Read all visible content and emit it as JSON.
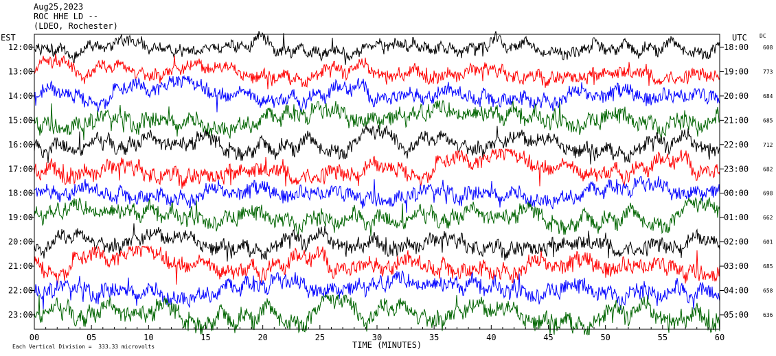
{
  "header": {
    "date": "Aug25,2023",
    "station": "ROC HHE LD --",
    "location": "(LDEO, Rochester)"
  },
  "footer": {
    "scale_note": "Each Vertical Division =  333.33 microvolts"
  },
  "chart_data": {
    "type": "line",
    "title": "",
    "xlabel": "TIME (MINUTES)",
    "left_axis_label": "EST",
    "right_axis_label": "UTC",
    "dc_label": "DC",
    "xlim": [
      0,
      60
    ],
    "x_ticks": [
      "00",
      "05",
      "10",
      "15",
      "20",
      "25",
      "30",
      "35",
      "40",
      "45",
      "50",
      "55",
      "60"
    ],
    "trace_colors": [
      "#000000",
      "#ff0000",
      "#0000ff",
      "#006400"
    ],
    "rows": [
      {
        "est": "12:00",
        "utc": "18:00",
        "dc": "608",
        "color": "#000000",
        "amplitude": 0.6
      },
      {
        "est": "13:00",
        "utc": "19:00",
        "dc": "773",
        "color": "#ff0000",
        "amplitude": 0.65
      },
      {
        "est": "14:00",
        "utc": "20:00",
        "dc": "684",
        "color": "#0000ff",
        "amplitude": 0.75
      },
      {
        "est": "15:00",
        "utc": "21:00",
        "dc": "685",
        "color": "#006400",
        "amplitude": 0.85
      },
      {
        "est": "16:00",
        "utc": "22:00",
        "dc": "712",
        "color": "#000000",
        "amplitude": 0.75
      },
      {
        "est": "17:00",
        "utc": "23:00",
        "dc": "682",
        "color": "#ff0000",
        "amplitude": 0.8
      },
      {
        "est": "18:00",
        "utc": "00:00",
        "dc": "698",
        "color": "#0000ff",
        "amplitude": 0.75
      },
      {
        "est": "19:00",
        "utc": "01:00",
        "dc": "662",
        "color": "#006400",
        "amplitude": 0.8
      },
      {
        "est": "20:00",
        "utc": "02:00",
        "dc": "601",
        "color": "#000000",
        "amplitude": 0.75
      },
      {
        "est": "21:00",
        "utc": "03:00",
        "dc": "685",
        "color": "#ff0000",
        "amplitude": 0.85
      },
      {
        "est": "22:00",
        "utc": "04:00",
        "dc": "658",
        "color": "#0000ff",
        "amplitude": 0.8
      },
      {
        "est": "23:00",
        "utc": "05:00",
        "dc": "636",
        "color": "#006400",
        "amplitude": 0.9
      }
    ]
  }
}
